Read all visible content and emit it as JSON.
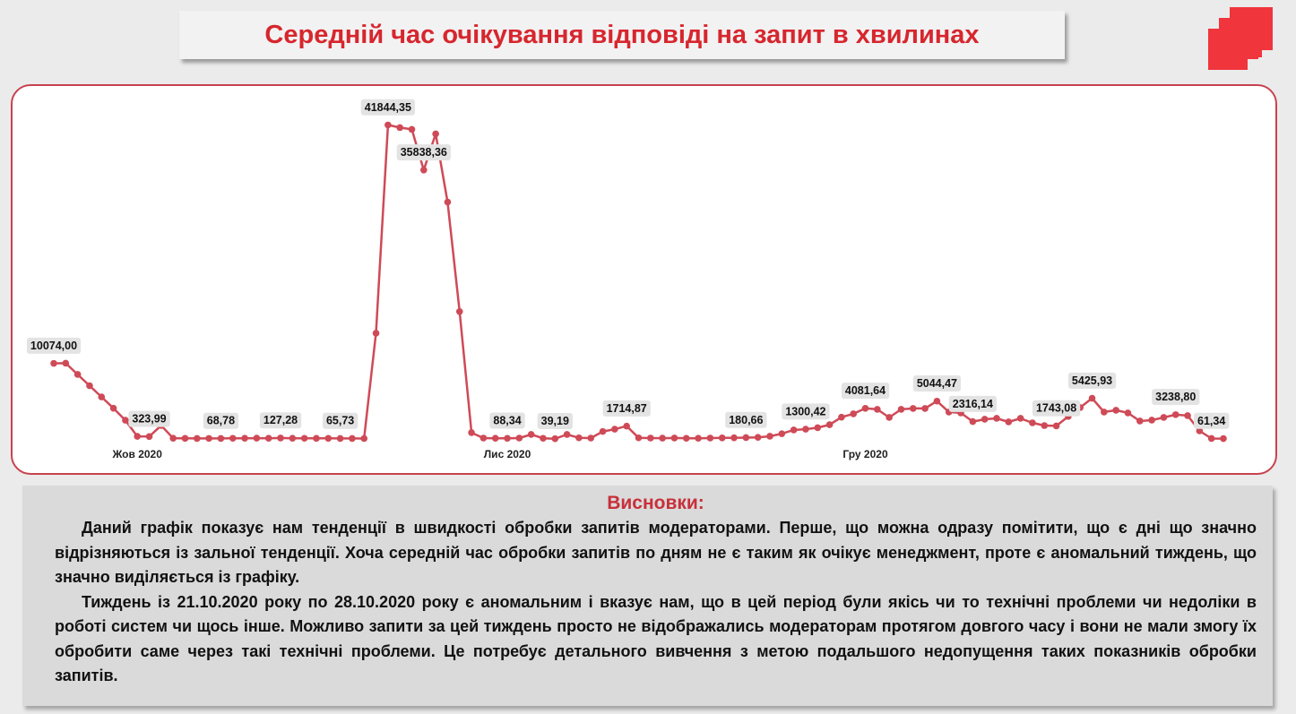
{
  "chart_data": {
    "type": "line",
    "title": "Середній час очікування відповіді на запит в хвилинах",
    "color": "#cf4a57",
    "categories": [
      null,
      null,
      null,
      null,
      null,
      null,
      null,
      "Жов 2020",
      null,
      null,
      null,
      null,
      null,
      null,
      null,
      null,
      null,
      null,
      null,
      null,
      null,
      null,
      null,
      null,
      null,
      null,
      null,
      null,
      null,
      null,
      null,
      null,
      null,
      null,
      null,
      null,
      null,
      null,
      "Лис 2020",
      null,
      null,
      null,
      null,
      null,
      null,
      null,
      null,
      null,
      null,
      null,
      null,
      null,
      null,
      null,
      null,
      null,
      null,
      null,
      null,
      null,
      null,
      null,
      null,
      null,
      null,
      null,
      null,
      null,
      "Гру 2020",
      null,
      null,
      null,
      null,
      null,
      null,
      null,
      null,
      null,
      null,
      null,
      null,
      null,
      null,
      null,
      null,
      null,
      null,
      null,
      null,
      null,
      null,
      null,
      null,
      null,
      null,
      null,
      null,
      null,
      null
    ],
    "values": [
      10074,
      10100,
      8600,
      7100,
      5600,
      4100,
      2500,
      350,
      323.99,
      1800,
      100,
      80,
      70,
      75,
      68.78,
      90,
      100,
      110,
      95,
      127.28,
      100,
      90,
      80,
      85,
      65.73,
      70,
      60,
      14100,
      41844.35,
      41500,
      41260,
      35838.36,
      40660,
      31570,
      16980,
      840,
      120,
      100,
      88.34,
      120,
      600,
      90,
      39.19,
      600,
      150,
      120,
      1000,
      1300,
      1714.87,
      150,
      120,
      110,
      130,
      90,
      100,
      120,
      140,
      160,
      180.66,
      220,
      360,
      700,
      1200,
      1300.42,
      1500,
      1900,
      2900,
      3350,
      4081.64,
      3950,
      2870,
      3950,
      4070,
      4070,
      5044.47,
      3590,
      3470,
      2316.14,
      2630,
      2750,
      2270,
      2750,
      2150,
      1790,
      1743.08,
      3000,
      4190,
      5425.93,
      3590,
      3830,
      3470,
      2390,
      2510,
      2870,
      3238.8,
      3110,
      1080,
      61.34,
      50
    ],
    "value_labels": [
      "10074,00",
      null,
      null,
      null,
      null,
      null,
      null,
      null,
      "323,99",
      null,
      null,
      null,
      null,
      null,
      "68,78",
      null,
      null,
      null,
      null,
      "127,28",
      null,
      null,
      null,
      null,
      "65,73",
      null,
      null,
      null,
      "41844,35",
      null,
      null,
      "35838,36",
      null,
      null,
      null,
      null,
      null,
      null,
      "88,34",
      null,
      null,
      null,
      "39,19",
      null,
      null,
      null,
      null,
      null,
      "1714,87",
      null,
      null,
      null,
      null,
      null,
      null,
      null,
      null,
      null,
      "180,66",
      null,
      null,
      null,
      null,
      "1300,42",
      null,
      null,
      null,
      null,
      "4081,64",
      null,
      null,
      null,
      null,
      null,
      "5044,47",
      null,
      null,
      "2316,14",
      null,
      null,
      null,
      null,
      null,
      null,
      "1743,08",
      null,
      null,
      "5425,93",
      null,
      null,
      null,
      null,
      null,
      null,
      "3238,80",
      null,
      null,
      "61,34",
      null
    ],
    "ylim": [
      0,
      42500
    ],
    "grid": false
  },
  "conclusions": {
    "title": "Висновки:",
    "paragraphs": [
      "Даний графік показує нам тенденції в швидкості обробки запитів модераторами. Перше, що можна одразу помітити, що є дні що значно відрізняються із зальної тенденції. Хоча середній час обробки запитів по дням не є таким як очікує менеджмент, проте є аномальний тиждень, що значно виділяється із графіку.",
      "Тиждень із 21.10.2020 року по 28.10.2020 року є аномальним і вказує нам, що в цей період були якісь чи то технічні проблеми чи недоліки в роботі систем чи щось інше. Можливо запити за цей тиждень просто не відображались модераторам протягом довгого часу і вони не мали змогу їх обробити саме через такі технічні проблеми. Це потребує детального вивчення з метою подальшого недопущення таких показників обробки запитів."
    ]
  }
}
